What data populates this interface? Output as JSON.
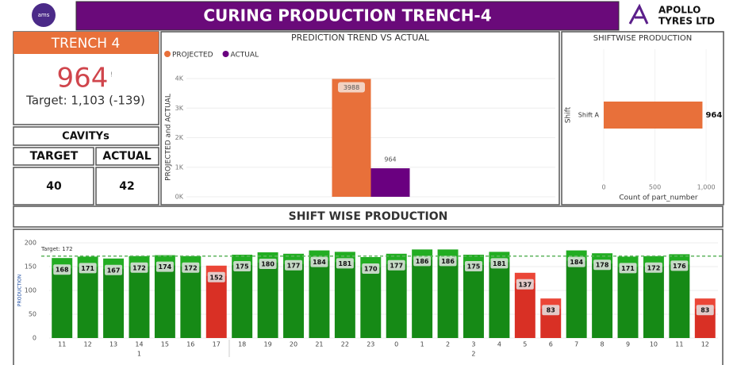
{
  "header": {
    "title": "CURING PRODUCTION TRENCH-4",
    "logo_left": "ams",
    "logo_right_1": "APOLLO",
    "logo_right_2": "TYRES LTD"
  },
  "kpi": {
    "title": "TRENCH 4",
    "value": 964,
    "marker": "!",
    "target": "Target: 1,103 (-139)"
  },
  "cavities": {
    "title": "CAVITYs",
    "headers": [
      "TARGET",
      "ACTUAL"
    ],
    "values": [
      40,
      42
    ]
  },
  "chart_data": [
    {
      "type": "bar",
      "title": "PREDICTION TREND VS ACTUAL",
      "y_label": "PROJECTED and ACTUAL",
      "legend": "top-left",
      "categories": [
        null
      ],
      "series": [
        {
          "name": "PROJECTED",
          "color": "#e8703a",
          "values": [
            3988
          ]
        },
        {
          "name": "ACTUAL",
          "color": "#6a0080",
          "values": [
            964
          ]
        }
      ],
      "ylim": [
        0,
        4000
      ],
      "yticks": [
        {
          "value": 0,
          "label": "0K"
        },
        {
          "value": 1000,
          "label": "1K"
        },
        {
          "value": 2000,
          "label": "2K"
        },
        {
          "value": 3000,
          "label": "3K"
        },
        {
          "value": 4000,
          "label": "4K"
        }
      ]
    },
    {
      "type": "hbar",
      "title": "SHIFTWISE PRODUCTION",
      "x_label": "Count of part_number",
      "y_label": "Shift",
      "categories": [
        "Shift A"
      ],
      "values": [
        964
      ],
      "color": "#e8703a",
      "xlim": [
        0,
        1100
      ],
      "xticks": [
        0,
        500,
        {
          "value": 1000,
          "label": "1,000"
        }
      ]
    },
    {
      "type": "grouped-categories-bar",
      "title": "SHIFT WISE PRODUCTION",
      "y_label": "PRODUCTION",
      "target": 172,
      "target_label": "Target: 172",
      "ylim": [
        0,
        200
      ],
      "yticks": [
        0,
        50,
        100,
        150,
        200
      ],
      "groups": [
        {
          "label": "1",
          "categories": [
            "11",
            "12",
            "13",
            "14",
            "15",
            "16",
            "17"
          ],
          "values": [
            168,
            171,
            167,
            172,
            174,
            172,
            152
          ],
          "colors": [
            "#168a16",
            "#168a16",
            "#168a16",
            "#168a16",
            "#168a16",
            "#168a16",
            "#d93025"
          ]
        },
        {
          "label": "2",
          "categories": [
            "18",
            "19",
            "20",
            "21",
            "22",
            "23",
            "0",
            "1",
            "2",
            "3",
            "4",
            "5",
            "6",
            "7",
            "8",
            "9",
            "10",
            "11",
            "12"
          ],
          "values": [
            175,
            180,
            177,
            184,
            181,
            170,
            177,
            186,
            186,
            175,
            181,
            137,
            83,
            184,
            178,
            171,
            172,
            176,
            83
          ],
          "colors": [
            "#168a16",
            "#168a16",
            "#168a16",
            "#168a16",
            "#168a16",
            "#168a16",
            "#168a16",
            "#168a16",
            "#168a16",
            "#168a16",
            "#168a16",
            "#d93025",
            "#d93025",
            "#168a16",
            "#168a16",
            "#168a16",
            "#168a16",
            "#168a16",
            "#d93025"
          ]
        }
      ]
    }
  ]
}
